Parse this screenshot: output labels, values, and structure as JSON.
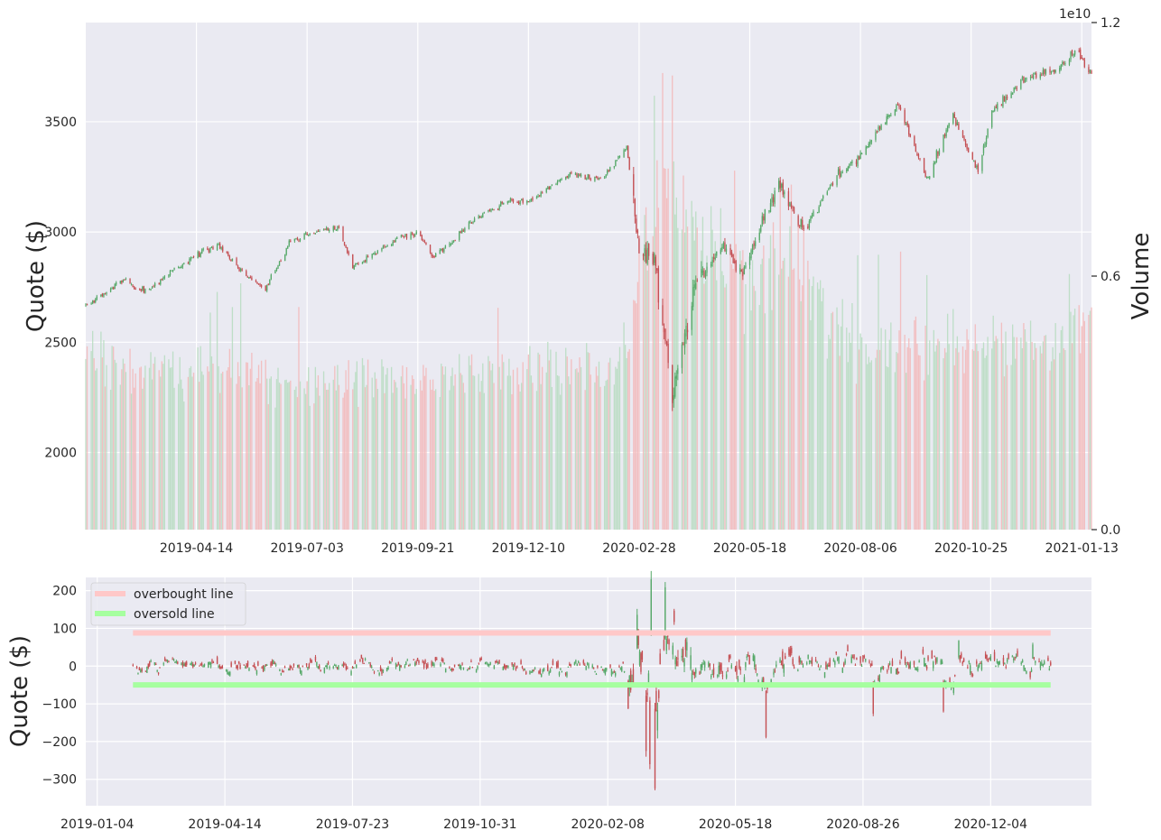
{
  "chart_data": [
    {
      "type": "candlestick",
      "title": "",
      "ylabel": "Quote ($)",
      "ylabel_right": "Volume",
      "volume_scale_label": "1e10",
      "ylim": [
        1650,
        3950
      ],
      "volume_ylim": [
        0,
        1.2
      ],
      "yticks": [
        "2000",
        "2500",
        "3000",
        "3500"
      ],
      "yticks_right": [
        "0.0",
        "0.6",
        "1.2"
      ],
      "xticks": [
        "2019-04-14",
        "2019-07-03",
        "2019-09-21",
        "2019-12-10",
        "2020-02-28",
        "2020-05-18",
        "2020-08-06",
        "2020-10-25",
        "2021-01-13"
      ],
      "x_range": [
        "2019-01-24",
        "2021-01-20"
      ],
      "up_color": "#55a868",
      "down_color": "#c44e52",
      "price_path": [
        [
          "2019-01-24",
          2665
        ],
        [
          "2019-02-20",
          2780
        ],
        [
          "2019-03-08",
          2730
        ],
        [
          "2019-04-14",
          2900
        ],
        [
          "2019-05-01",
          2940
        ],
        [
          "2019-05-15",
          2830
        ],
        [
          "2019-06-03",
          2740
        ],
        [
          "2019-06-20",
          2950
        ],
        [
          "2019-07-03",
          2990
        ],
        [
          "2019-07-26",
          3020
        ],
        [
          "2019-08-05",
          2840
        ],
        [
          "2019-08-20",
          2900
        ],
        [
          "2019-09-10",
          2980
        ],
        [
          "2019-09-21",
          2990
        ],
        [
          "2019-10-03",
          2880
        ],
        [
          "2019-11-01",
          3060
        ],
        [
          "2019-11-25",
          3140
        ],
        [
          "2019-12-10",
          3135
        ],
        [
          "2020-01-10",
          3270
        ],
        [
          "2020-01-31",
          3230
        ],
        [
          "2020-02-19",
          3385
        ],
        [
          "2020-02-28",
          2950
        ],
        [
          "2020-03-10",
          2880
        ],
        [
          "2020-03-23",
          2240
        ],
        [
          "2020-04-08",
          2750
        ],
        [
          "2020-04-29",
          2940
        ],
        [
          "2020-05-13",
          2820
        ],
        [
          "2020-06-08",
          3230
        ],
        [
          "2020-06-26",
          3010
        ],
        [
          "2020-07-20",
          3250
        ],
        [
          "2020-08-06",
          3350
        ],
        [
          "2020-09-02",
          3580
        ],
        [
          "2020-09-23",
          3240
        ],
        [
          "2020-10-12",
          3530
        ],
        [
          "2020-10-30",
          3270
        ],
        [
          "2020-11-09",
          3550
        ],
        [
          "2020-12-04",
          3700
        ],
        [
          "2020-12-28",
          3735
        ],
        [
          "2021-01-08",
          3825
        ],
        [
          "2021-01-20",
          3720
        ]
      ],
      "volume_path": [
        [
          "2019-01-24",
          0.4
        ],
        [
          "2019-03-01",
          0.37
        ],
        [
          "2019-05-01",
          0.38
        ],
        [
          "2019-07-03",
          0.34
        ],
        [
          "2019-09-21",
          0.36
        ],
        [
          "2019-12-10",
          0.38
        ],
        [
          "2020-02-20",
          0.4
        ],
        [
          "2020-02-28",
          0.6
        ],
        [
          "2020-03-15",
          0.85
        ],
        [
          "2020-04-15",
          0.7
        ],
        [
          "2020-05-18",
          0.58
        ],
        [
          "2020-06-12",
          0.66
        ],
        [
          "2020-08-06",
          0.42
        ],
        [
          "2020-10-25",
          0.45
        ],
        [
          "2020-12-20",
          0.43
        ],
        [
          "2021-01-20",
          0.5
        ]
      ]
    },
    {
      "type": "candlestick",
      "title": "",
      "ylabel": "Quote ($)",
      "ylim": [
        -370,
        235
      ],
      "yticks": [
        "200",
        "100",
        "0",
        "−100",
        "−200",
        "−300"
      ],
      "xticks": [
        "2019-01-04",
        "2019-04-14",
        "2019-07-23",
        "2019-10-31",
        "2020-02-08",
        "2020-05-18",
        "2020-08-26",
        "2020-12-04"
      ],
      "x_range": [
        "2018-12-26",
        "2021-02-21"
      ],
      "series_range": [
        "2019-02-01",
        "2021-01-20"
      ],
      "overbought_level": 88,
      "oversold_level": -50,
      "legend": [
        "overbought line",
        "oversold line"
      ],
      "legend_position": "top-left",
      "overbought_color": "#ffc8c8",
      "oversold_color": "#a6ff9f",
      "up_color": "#55a868",
      "down_color": "#c44e52",
      "change_extremes": [
        [
          "2020-02-24",
          -112
        ],
        [
          "2020-03-02",
          136
        ],
        [
          "2020-03-09",
          -225
        ],
        [
          "2020-03-12",
          -260
        ],
        [
          "2020-03-13",
          230
        ],
        [
          "2020-03-16",
          -324
        ],
        [
          "2020-03-24",
          209
        ],
        [
          "2020-06-11",
          -188
        ],
        [
          "2020-09-03",
          -126
        ],
        [
          "2020-11-09",
          67
        ],
        [
          "2020-10-28",
          -120
        ],
        [
          "2021-01-06",
          57
        ]
      ]
    }
  ]
}
